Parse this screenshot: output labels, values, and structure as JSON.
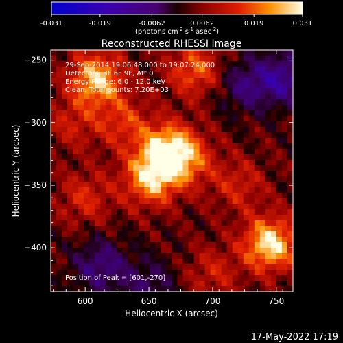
{
  "chart_data": {
    "type": "heatmap",
    "title": "Reconstructed RHESSI Image",
    "xlabel": "Heliocentric X (arcsec)",
    "ylabel": "Heliocentric Y (arcsec)",
    "xlim": [
      573,
      763
    ],
    "ylim": [
      -435,
      -242
    ],
    "x_ticks": [
      600,
      650,
      700,
      750
    ],
    "y_ticks": [
      -250,
      -300,
      -350,
      -400
    ],
    "colorbar": {
      "min": -0.031,
      "max": 0.031,
      "ticks": [
        "-0.031",
        "-0.019",
        "-0.0062",
        "0.0062",
        "0.019",
        "0.031"
      ],
      "label_pre": "(photons cm",
      "label_exp1": "-2",
      "label_mid": " s",
      "label_exp2": "-1",
      "label_mid2": " asec",
      "label_exp3": "-2",
      "label_post": ")"
    },
    "annotations": [
      "29-Sep-2014 19:06:48.000 to 19:07:24.000",
      "Detectors: 3F 6F 9F, Att 0",
      "Energy Range: 6.0 - 12.0 keV",
      "Clean.    Total counts: 7.20E+03"
    ],
    "peak_label": "Position of Peak = [601,-270]",
    "blobs": [
      {
        "x": 609,
        "y": -265,
        "v": 0.024
      },
      {
        "x": 651,
        "y": -345,
        "v": 0.022
      },
      {
        "x": 664,
        "y": -322,
        "v": 0.024
      },
      {
        "x": 745,
        "y": -397,
        "v": 0.027
      },
      {
        "x": 686,
        "y": -258,
        "v": 0.016
      },
      {
        "x": 680,
        "y": -330,
        "v": 0.014
      },
      {
        "x": 720,
        "y": -350,
        "v": 0.01
      },
      {
        "x": 590,
        "y": -300,
        "v": 0.009
      },
      {
        "x": 630,
        "y": -300,
        "v": 0.012
      },
      {
        "x": 600,
        "y": -360,
        "v": 0.011
      },
      {
        "x": 700,
        "y": -420,
        "v": 0.009
      },
      {
        "x": 612,
        "y": -415,
        "v": -0.014
      },
      {
        "x": 725,
        "y": -270,
        "v": -0.012
      },
      {
        "x": 650,
        "y": -430,
        "v": -0.01
      },
      {
        "x": 755,
        "y": -265,
        "v": -0.016
      }
    ]
  },
  "timestamp": "17-May-2022 17:19"
}
